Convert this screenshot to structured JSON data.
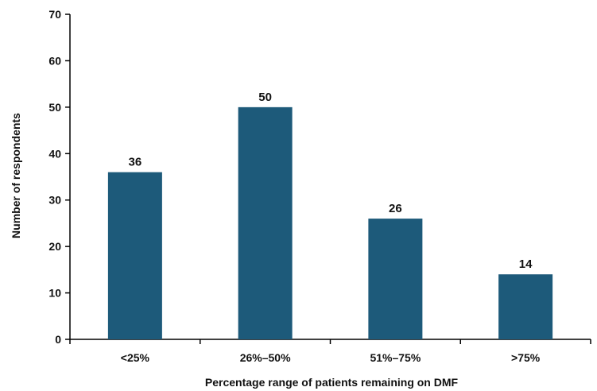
{
  "chart_data": {
    "type": "bar",
    "categories": [
      "<25%",
      "26%–50%",
      "51%–75%",
      ">75%"
    ],
    "values": [
      36,
      50,
      26,
      14
    ],
    "data_labels": [
      "36",
      "50",
      "26",
      "14"
    ],
    "xlabel": "Percentage range of patients remaining on DMF",
    "ylabel": "Number of respondents",
    "ylim": [
      0,
      70
    ],
    "yticks": [
      0,
      10,
      20,
      30,
      40,
      50,
      60,
      70
    ],
    "grid": false,
    "legend": "none",
    "bar_color": "#1d5a7a",
    "axis_color": "#000000"
  }
}
